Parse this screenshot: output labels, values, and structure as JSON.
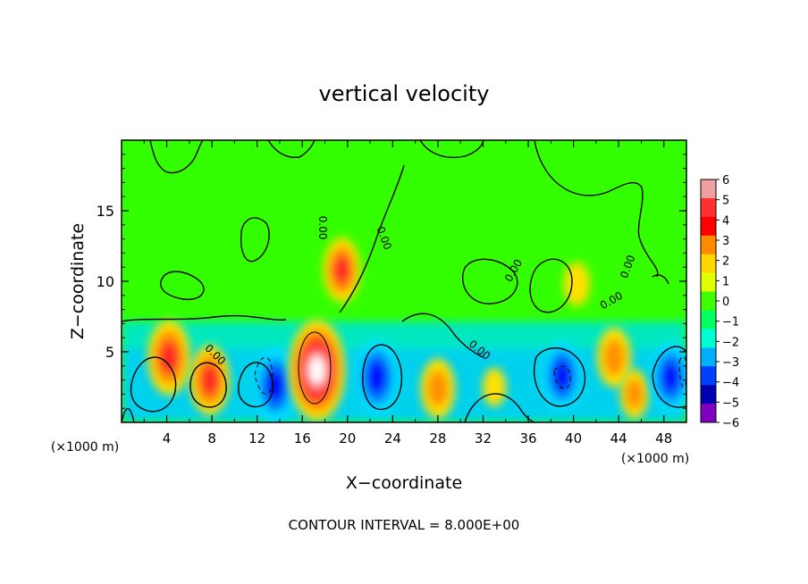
{
  "chart_data": {
    "type": "heatmap",
    "title": "vertical velocity",
    "xlabel": "X−coordinate",
    "ylabel": "Z−coordinate",
    "x_unit_label": "(×1000 m)",
    "y_unit_label": "(×1000 m)",
    "footer": "CONTOUR INTERVAL = 8.000E+00",
    "xlim": [
      0,
      50
    ],
    "ylim": [
      0,
      20
    ],
    "x_ticks": [
      "4",
      "8",
      "12",
      "16",
      "20",
      "24",
      "28",
      "32",
      "36",
      "40",
      "44",
      "48"
    ],
    "y_ticks": [
      "5",
      "10",
      "15"
    ],
    "colorbar": {
      "range": [
        -6,
        6
      ],
      "labels": [
        "6",
        "5",
        "4",
        "3",
        "2",
        "1",
        "0",
        "−1",
        "−2",
        "−3",
        "−4",
        "−5",
        "−6"
      ],
      "colors": [
        "#f0a0a0",
        "#ff3030",
        "#ff0000",
        "#ff8c00",
        "#ffd700",
        "#e0ff00",
        "#40ff00",
        "#00ff60",
        "#00ffd0",
        "#00b0ff",
        "#0040ff",
        "#0000b0",
        "#8000c0"
      ]
    },
    "contour_labels": [
      "0.00"
    ],
    "blobs": [
      {
        "x": 4.2,
        "z": 4.6,
        "value": 9
      },
      {
        "x": 7.8,
        "z": 3.0,
        "value": 8
      },
      {
        "x": 13.6,
        "z": 2.6,
        "value": -9
      },
      {
        "x": 17.3,
        "z": 3.7,
        "value": 14
      },
      {
        "x": 19.5,
        "z": 10.8,
        "value": 7
      },
      {
        "x": 22.6,
        "z": 3.2,
        "value": -9
      },
      {
        "x": 28.0,
        "z": 2.4,
        "value": 6
      },
      {
        "x": 33.0,
        "z": 2.5,
        "value": 2
      },
      {
        "x": 39.0,
        "z": 3.3,
        "value": -8
      },
      {
        "x": 43.6,
        "z": 4.6,
        "value": 6
      },
      {
        "x": 45.4,
        "z": 2.0,
        "value": 4
      },
      {
        "x": 48.6,
        "z": 3.2,
        "value": -8
      },
      {
        "x": 40.3,
        "z": 9.8,
        "value": 3
      }
    ]
  }
}
